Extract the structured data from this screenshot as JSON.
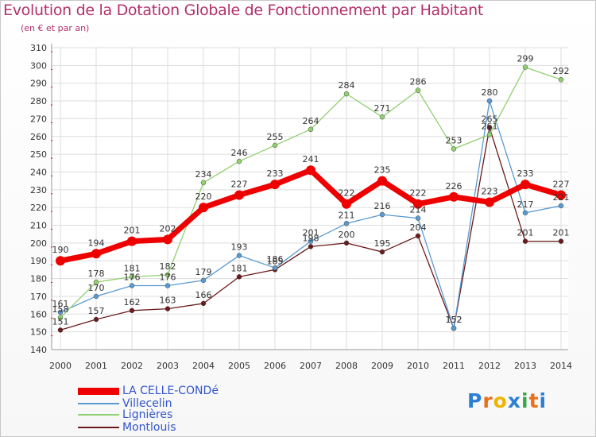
{
  "chart_data": {
    "type": "line",
    "title": "Evolution de la Dotation Globale de Fonctionnement par Habitant",
    "subtitle": "(en € et par an)",
    "xlabel": "",
    "ylabel": "",
    "categories": [
      "2000",
      "2001",
      "2002",
      "2003",
      "2004",
      "2005",
      "2006",
      "2007",
      "2008",
      "2009",
      "2010",
      "2011",
      "2012",
      "2013",
      "2014"
    ],
    "ylim": [
      140,
      310
    ],
    "yticks": [
      140,
      150,
      160,
      170,
      180,
      190,
      200,
      210,
      220,
      230,
      240,
      250,
      260,
      270,
      280,
      290,
      300,
      310
    ],
    "series": [
      {
        "name": "LA CELLE-CONDé",
        "color": "#ee0000",
        "values": [
          190,
          194,
          201,
          202,
          220,
          227,
          233,
          241,
          222,
          235,
          222,
          226,
          223,
          233,
          227
        ]
      },
      {
        "name": "Villecelin",
        "color": "#5a9ad0",
        "values": [
          161,
          170,
          176,
          176,
          179,
          193,
          186,
          201,
          211,
          216,
          214,
          152,
          280,
          217,
          221
        ]
      },
      {
        "name": "Lignières",
        "color": "#90d070",
        "values": [
          158,
          178,
          181,
          182,
          234,
          246,
          255,
          264,
          284,
          271,
          286,
          253,
          261,
          299,
          292
        ]
      },
      {
        "name": "Montlouis",
        "color": "#6a1a1a",
        "values": [
          151,
          157,
          162,
          163,
          166,
          181,
          185,
          198,
          200,
          195,
          204,
          152,
          265,
          201,
          201
        ]
      }
    ]
  },
  "legend": {
    "items": [
      "LA CELLE-CONDé",
      "Villecelin",
      "Lignières",
      "Montlouis"
    ]
  },
  "logo": {
    "text": "Proxiti"
  }
}
